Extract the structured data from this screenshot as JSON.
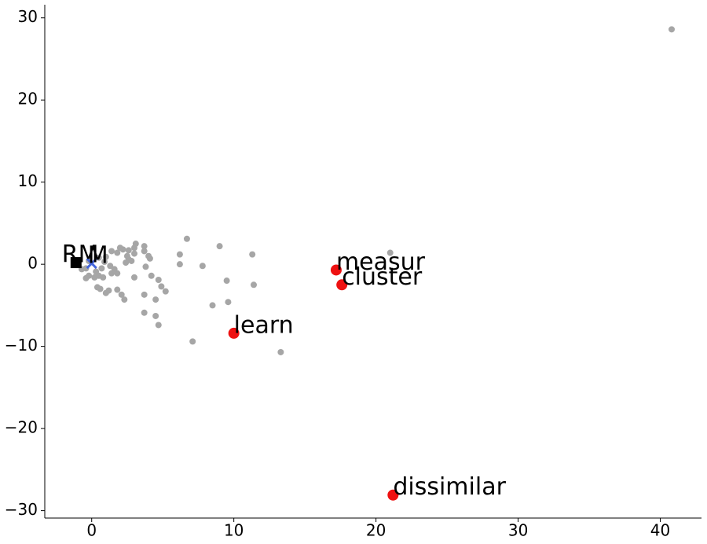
{
  "chart_data": {
    "type": "scatter",
    "xlim": [
      -3.3,
      42.9
    ],
    "ylim": [
      -30.9,
      31.6
    ],
    "xticks": [
      0,
      10,
      20,
      30,
      40
    ],
    "yticks": [
      {
        "value": -30,
        "label": "−30"
      },
      {
        "value": -20,
        "label": "−20"
      },
      {
        "value": -10,
        "label": "−10"
      },
      0,
      10,
      20,
      30
    ],
    "grid": false,
    "series": [
      {
        "color": "#a6a6a6",
        "marker": "o",
        "size": 4,
        "x": [
          40.8,
          21,
          13.3,
          11.3,
          11.4,
          9.5,
          9.6,
          9,
          8.5,
          7.8,
          7.1,
          6.7,
          6.2,
          6.2,
          5.2,
          4.9,
          4.7,
          4.7,
          4.5,
          4.5,
          4.2,
          3.7,
          3.7,
          3.8,
          3.7,
          3.7,
          4,
          4.1,
          3.1,
          3,
          3,
          3,
          2.6,
          2.6,
          2.3,
          2.1,
          1.8,
          2.2,
          2,
          1.8,
          1.8,
          1.6,
          1.4,
          1.3,
          1.4,
          1,
          1.2,
          0.8,
          0.6,
          0.4,
          0.5,
          0.2,
          -0.2,
          -0.4,
          0.7,
          0.9,
          0.5,
          -0.4,
          -0.7,
          -0.2,
          0.3,
          1,
          2.4,
          2.8,
          2.5
        ],
        "y": [
          28.6,
          1.4,
          -10.7,
          1.2,
          -2.5,
          -2,
          -4.6,
          2.2,
          -5,
          -0.2,
          -9.4,
          3.1,
          1.2,
          0,
          -3.3,
          -2.7,
          -1.9,
          -7.4,
          -4.3,
          -6.3,
          -1.4,
          -3.7,
          -5.9,
          -0.3,
          2.2,
          1.6,
          1,
          0.7,
          2.5,
          2,
          1.3,
          -1.6,
          1.7,
          0.6,
          -4.3,
          -3.7,
          -3.1,
          1.8,
          2,
          1.4,
          -1.1,
          -0.6,
          -1.1,
          -0.2,
          1.6,
          -3.5,
          -3.2,
          -1.6,
          -3,
          -2.8,
          -1.4,
          -1.6,
          -1.4,
          -1.7,
          -0.5,
          0.3,
          0.8,
          -0.5,
          -0.6,
          0.4,
          -0.9,
          0.9,
          0.2,
          0.4,
          1
        ]
      },
      {
        "color": "#ee1111",
        "marker": "o",
        "size": 7,
        "x": [
          17.2,
          17.6,
          10,
          21.2
        ],
        "y": [
          -0.7,
          -2.5,
          -8.4,
          -28.1
        ],
        "labels": [
          "measur",
          "cluster",
          "learn",
          "dissimilar"
        ]
      },
      {
        "color": "#000000",
        "marker": "s",
        "size": 7,
        "x": [
          -1.1
        ],
        "y": [
          0.2
        ],
        "labels": [
          "RM"
        ]
      },
      {
        "color": "#4466dd",
        "marker": "x",
        "size": 6,
        "x": [
          0
        ],
        "y": [
          0.1
        ],
        "labels": [
          "M"
        ]
      }
    ]
  }
}
